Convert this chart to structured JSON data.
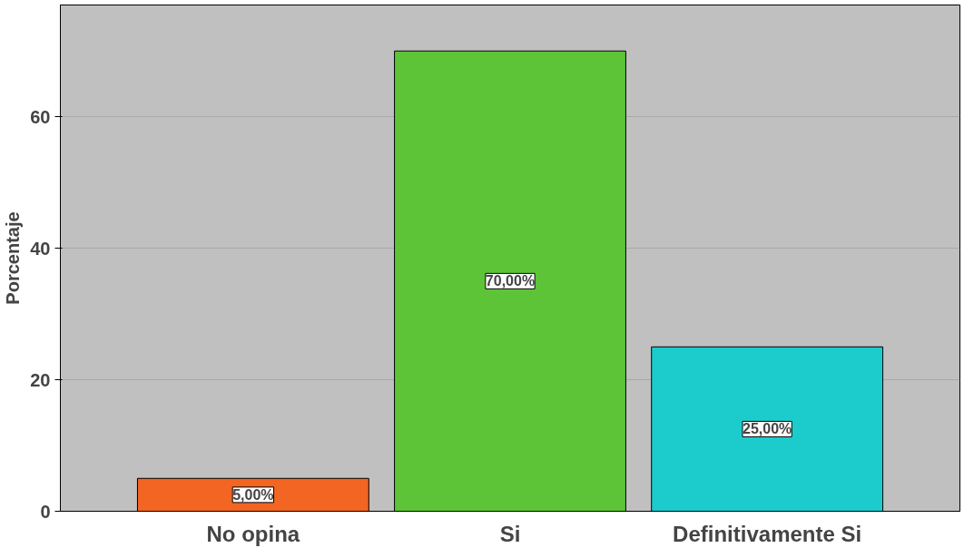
{
  "chart_data": {
    "type": "bar",
    "ylabel": "Porcentaje",
    "categories": [
      "No opina",
      "Si",
      "Definitivamente Si"
    ],
    "values": [
      5,
      70,
      25
    ],
    "colors": [
      "#f26522",
      "#5ec437",
      "#1ccccc"
    ],
    "value_labels": [
      "5,00%",
      "70,00%",
      "25,00%"
    ],
    "ylim": [
      0,
      77
    ],
    "yticks": [
      0,
      20,
      40,
      60
    ],
    "grid": "y"
  }
}
